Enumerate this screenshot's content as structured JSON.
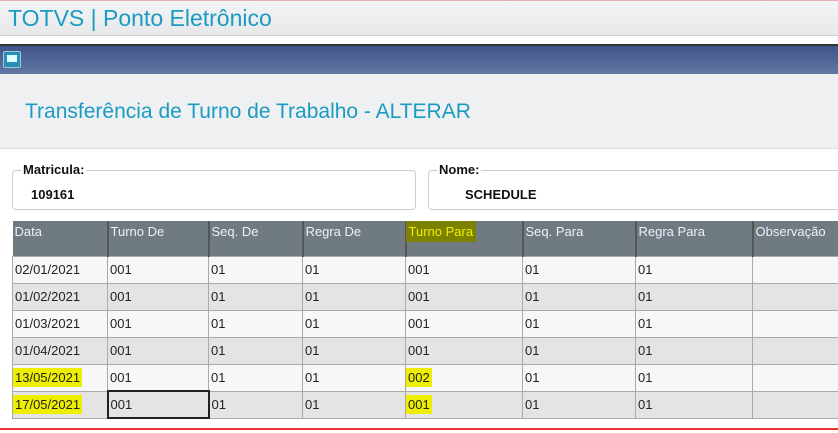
{
  "app": {
    "title": "TOTVS | Ponto Eletrônico"
  },
  "page": {
    "title": "Transferência de Turno de Trabalho - ALTERAR"
  },
  "fields": {
    "matricula_label": "Matricula:",
    "matricula_value": "109161",
    "nome_label": "Nome:",
    "nome_value": "SCHEDULE"
  },
  "table": {
    "headers": [
      "Data",
      "Turno De",
      "Seq. De",
      "Regra De",
      "Turno Para",
      "Seq. Para",
      "Regra Para",
      "Observação"
    ],
    "rows": [
      [
        "02/01/2021",
        "001",
        "01",
        "01",
        "001",
        "01",
        "01",
        ""
      ],
      [
        "01/02/2021",
        "001",
        "01",
        "01",
        "001",
        "01",
        "01",
        ""
      ],
      [
        "01/03/2021",
        "001",
        "01",
        "01",
        "001",
        "01",
        "01",
        ""
      ],
      [
        "01/04/2021",
        "001",
        "01",
        "01",
        "001",
        "01",
        "01",
        ""
      ],
      [
        "13/05/2021",
        "001",
        "01",
        "01",
        "002",
        "01",
        "01",
        ""
      ],
      [
        "17/05/2021",
        "001",
        "01",
        "01",
        "001",
        "01",
        "01",
        ""
      ]
    ],
    "highlight_color": "#eeee00"
  }
}
